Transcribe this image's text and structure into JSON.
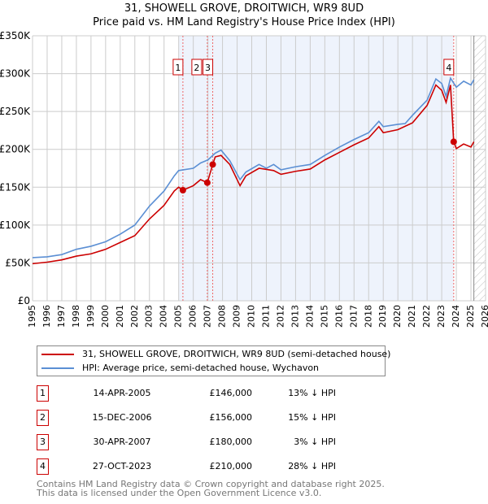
{
  "chart_data": {
    "type": "line",
    "title": "31, SHOWELL GROVE, DROITWICH, WR9 8UD",
    "subtitle": "Price paid vs. HM Land Registry's House Price Index (HPI)",
    "xlim": [
      1995,
      2026
    ],
    "ylim": [
      0,
      350000
    ],
    "yticks": [
      {
        "v": 0,
        "label": "£0"
      },
      {
        "v": 50000,
        "label": "£50K"
      },
      {
        "v": 100000,
        "label": "£100K"
      },
      {
        "v": 150000,
        "label": "£150K"
      },
      {
        "v": 200000,
        "label": "£200K"
      },
      {
        "v": 250000,
        "label": "£250K"
      },
      {
        "v": 300000,
        "label": "£300K"
      },
      {
        "v": 350000,
        "label": "£350K"
      }
    ],
    "xticks": [
      "1995",
      "1996",
      "1997",
      "1998",
      "1999",
      "2000",
      "2001",
      "2002",
      "2003",
      "2004",
      "2005",
      "2006",
      "2007",
      "2008",
      "2009",
      "2010",
      "2011",
      "2012",
      "2013",
      "2014",
      "2015",
      "2016",
      "2017",
      "2018",
      "2019",
      "2020",
      "2021",
      "2022",
      "2023",
      "2024",
      "2025",
      "2026"
    ],
    "grid": true,
    "shaded_range": [
      2005.0,
      2023.82
    ],
    "forecast_hatch_from": 2025.2,
    "series": [
      {
        "name": "31, SHOWELL GROVE, DROITWICH, WR9 8UD (semi-detached house)",
        "color": "#cc0000",
        "x": [
          1995,
          1996,
          1997,
          1998,
          1999,
          2000,
          2001,
          2002,
          2003,
          2004,
          2004.7,
          2005,
          2005.29,
          2006,
          2006.5,
          2006.96,
          2007.33,
          2007.5,
          2007.9,
          2008.5,
          2009.2,
          2009.6,
          2010.5,
          2011.5,
          2012,
          2013,
          2014,
          2015,
          2016,
          2017,
          2018,
          2018.7,
          2019,
          2020,
          2021,
          2022,
          2022.6,
          2023,
          2023.3,
          2023.6,
          2023.82,
          2024,
          2024.5,
          2025,
          2025.2
        ],
        "y": [
          49000,
          51000,
          54000,
          59000,
          62000,
          68000,
          77000,
          86000,
          108000,
          126000,
          145000,
          150000,
          146000,
          152000,
          160000,
          156000,
          180000,
          190000,
          192000,
          180000,
          152000,
          165000,
          175000,
          172000,
          167000,
          171000,
          174000,
          186000,
          196000,
          206000,
          215000,
          230000,
          222000,
          226000,
          235000,
          258000,
          285000,
          278000,
          262000,
          285000,
          210000,
          201000,
          207000,
          203000,
          210000
        ]
      },
      {
        "name": "HPI: Average price, semi-detached house, Wychavon",
        "color": "#5b8fd4",
        "x": [
          1995,
          1996,
          1997,
          1998,
          1999,
          2000,
          2001,
          2002,
          2003,
          2004,
          2004.7,
          2005,
          2006,
          2006.5,
          2007,
          2007.5,
          2007.9,
          2008.5,
          2009.2,
          2009.6,
          2010.5,
          2011,
          2011.5,
          2012,
          2013,
          2014,
          2015,
          2016,
          2017,
          2018,
          2018.7,
          2019,
          2020,
          2020.5,
          2021,
          2022,
          2022.6,
          2023,
          2023.3,
          2023.6,
          2024,
          2024.5,
          2025,
          2025.2
        ],
        "y": [
          57000,
          58000,
          61000,
          68000,
          72000,
          78000,
          88000,
          100000,
          125000,
          145000,
          165000,
          172000,
          175000,
          182000,
          186000,
          195000,
          199000,
          185000,
          160000,
          170000,
          180000,
          175000,
          180000,
          173000,
          177000,
          180000,
          192000,
          203000,
          213000,
          222000,
          237000,
          230000,
          233000,
          234000,
          245000,
          265000,
          293000,
          287000,
          270000,
          294000,
          282000,
          290000,
          285000,
          292000
        ]
      }
    ],
    "sales": [
      {
        "n": "1",
        "x": 2005.29,
        "y": 146000,
        "date": "14-APR-2005",
        "price": "£146,000",
        "hpi": "13% ↓ HPI"
      },
      {
        "n": "2",
        "x": 2006.96,
        "y": 156000,
        "date": "15-DEC-2006",
        "price": "£156,000",
        "hpi": "15% ↓ HPI"
      },
      {
        "n": "3",
        "x": 2007.33,
        "y": 180000,
        "date": "30-APR-2007",
        "price": "£180,000",
        "hpi": "3% ↓ HPI"
      },
      {
        "n": "4",
        "x": 2023.82,
        "y": 210000,
        "date": "27-OCT-2023",
        "price": "£210,000",
        "hpi": "28% ↓ HPI"
      }
    ]
  },
  "footer": {
    "line1": "Contains HM Land Registry data © Crown copyright and database right 2025.",
    "line2": "This data is licensed under the Open Government Licence v3.0."
  }
}
